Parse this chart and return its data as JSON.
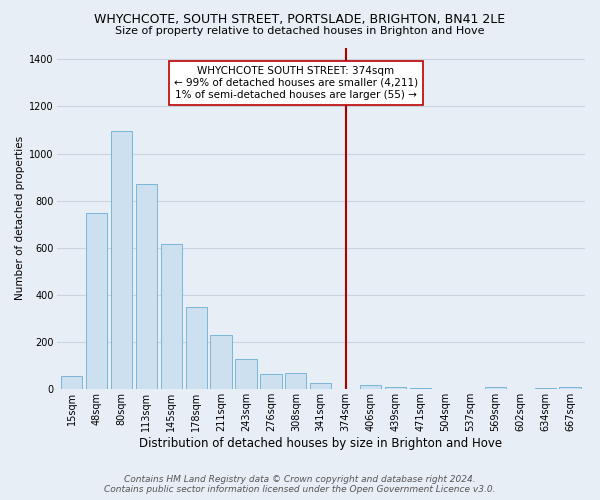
{
  "title": "WHYCHCOTE, SOUTH STREET, PORTSLADE, BRIGHTON, BN41 2LE",
  "subtitle": "Size of property relative to detached houses in Brighton and Hove",
  "xlabel": "Distribution of detached houses by size in Brighton and Hove",
  "ylabel": "Number of detached properties",
  "bar_labels": [
    "15sqm",
    "48sqm",
    "80sqm",
    "113sqm",
    "145sqm",
    "178sqm",
    "211sqm",
    "243sqm",
    "276sqm",
    "308sqm",
    "341sqm",
    "374sqm",
    "406sqm",
    "439sqm",
    "471sqm",
    "504sqm",
    "537sqm",
    "569sqm",
    "602sqm",
    "634sqm",
    "667sqm"
  ],
  "bar_values": [
    55,
    750,
    1095,
    870,
    615,
    350,
    230,
    130,
    65,
    70,
    25,
    0,
    20,
    10,
    5,
    0,
    0,
    10,
    0,
    5,
    10
  ],
  "bar_color": "#cce0f0",
  "bar_edge_color": "#6aaed6",
  "vline_index": 11,
  "vline_color": "#aa0000",
  "ylim": [
    0,
    1450
  ],
  "yticks": [
    0,
    200,
    400,
    600,
    800,
    1000,
    1200,
    1400
  ],
  "annotation_title": "WHYCHCOTE SOUTH STREET: 374sqm",
  "annotation_line1": "← 99% of detached houses are smaller (4,211)",
  "annotation_line2": "1% of semi-detached houses are larger (55) →",
  "annotation_box_facecolor": "#ffffff",
  "annotation_box_edgecolor": "#bb0000",
  "footer_line1": "Contains HM Land Registry data © Crown copyright and database right 2024.",
  "footer_line2": "Contains public sector information licensed under the Open Government Licence v3.0.",
  "bg_color": "#e8eef5",
  "plot_bg_color": "#e8eef5",
  "grid_color": "#c8d4e0",
  "title_fontsize": 9,
  "subtitle_fontsize": 8,
  "xlabel_fontsize": 8.5,
  "ylabel_fontsize": 7.5,
  "tick_fontsize": 7,
  "annot_fontsize": 7.5,
  "footer_fontsize": 6.5
}
